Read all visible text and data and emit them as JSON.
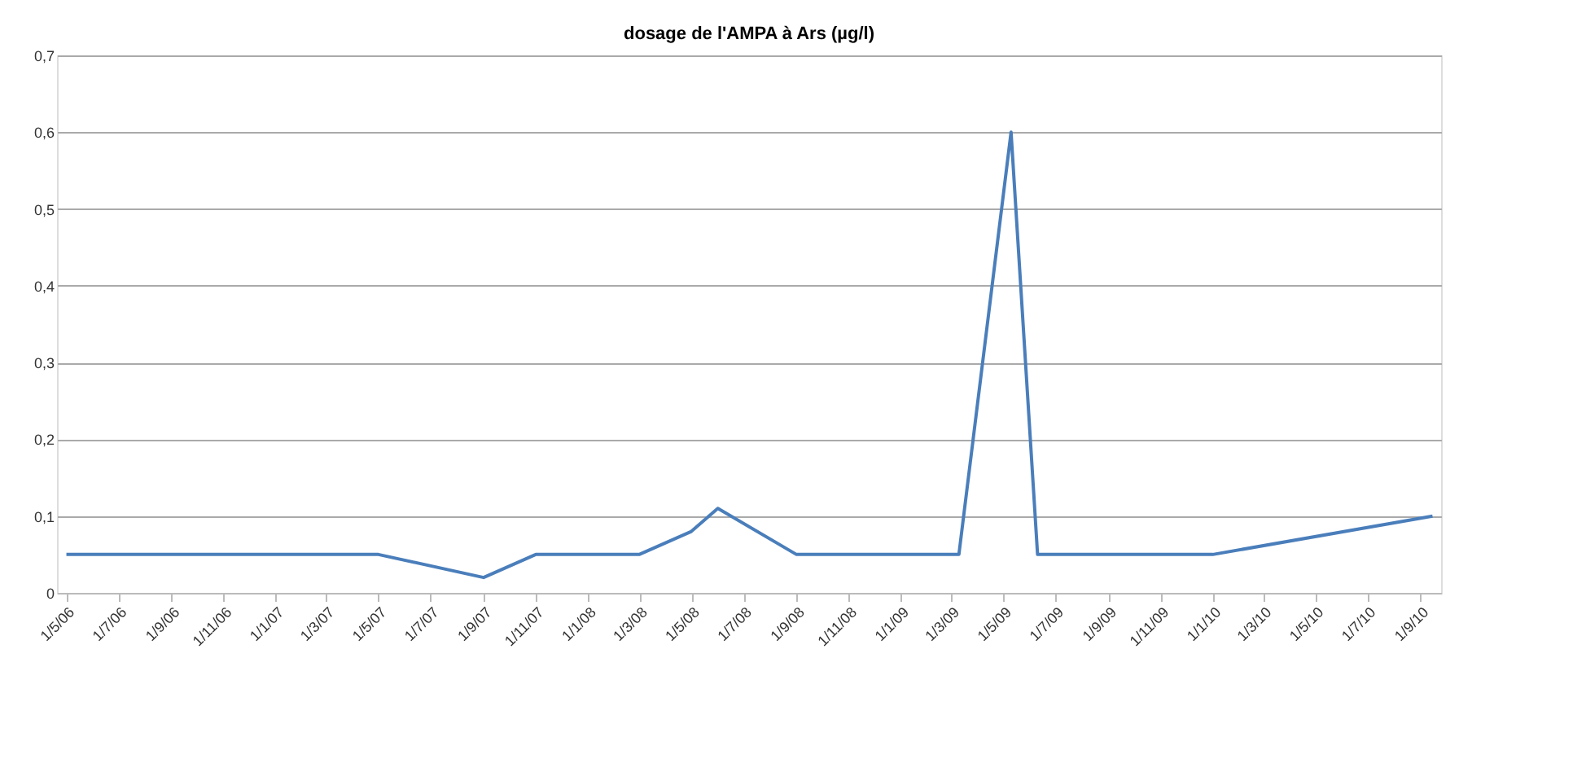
{
  "chart_data": {
    "type": "line",
    "title": "dosage de l'AMPA à Ars (µg/l)",
    "x": [
      "2006-05-01",
      "2007-05-01",
      "2007-09-01",
      "2007-11-01",
      "2008-03-01",
      "2008-05-01",
      "2008-06-01",
      "2008-09-01",
      "2009-03-10",
      "2009-05-10",
      "2009-06-10",
      "2010-01-01",
      "2010-09-15"
    ],
    "series": [
      {
        "color": "#4a7ebb",
        "values": [
          0.05,
          0.05,
          0.02,
          0.05,
          0.05,
          0.08,
          0.11,
          0.05,
          0.05,
          0.6,
          0.05,
          0.05,
          0.1
        ]
      }
    ],
    "xlim": [
      "2006-04-20",
      "2010-09-25"
    ],
    "xticks": [
      {
        "value": "2006-05-01",
        "label": "1/5/06"
      },
      {
        "value": "2006-07-01",
        "label": "1/7/06"
      },
      {
        "value": "2006-09-01",
        "label": "1/9/06"
      },
      {
        "value": "2006-11-01",
        "label": "1/11/06"
      },
      {
        "value": "2007-01-01",
        "label": "1/1/07"
      },
      {
        "value": "2007-03-01",
        "label": "1/3/07"
      },
      {
        "value": "2007-05-01",
        "label": "1/5/07"
      },
      {
        "value": "2007-07-01",
        "label": "1/7/07"
      },
      {
        "value": "2007-09-01",
        "label": "1/9/07"
      },
      {
        "value": "2007-11-01",
        "label": "1/11/07"
      },
      {
        "value": "2008-01-01",
        "label": "1/1/08"
      },
      {
        "value": "2008-03-01",
        "label": "1/3/08"
      },
      {
        "value": "2008-05-01",
        "label": "1/5/08"
      },
      {
        "value": "2008-07-01",
        "label": "1/7/08"
      },
      {
        "value": "2008-09-01",
        "label": "1/9/08"
      },
      {
        "value": "2008-11-01",
        "label": "1/11/08"
      },
      {
        "value": "2009-01-01",
        "label": "1/1/09"
      },
      {
        "value": "2009-03-01",
        "label": "1/3/09"
      },
      {
        "value": "2009-05-01",
        "label": "1/5/09"
      },
      {
        "value": "2009-07-01",
        "label": "1/7/09"
      },
      {
        "value": "2009-09-01",
        "label": "1/9/09"
      },
      {
        "value": "2009-11-01",
        "label": "1/11/09"
      },
      {
        "value": "2010-01-01",
        "label": "1/1/10"
      },
      {
        "value": "2010-03-01",
        "label": "1/3/10"
      },
      {
        "value": "2010-05-01",
        "label": "1/5/10"
      },
      {
        "value": "2010-07-01",
        "label": "1/7/10"
      },
      {
        "value": "2010-09-01",
        "label": "1/9/10"
      }
    ],
    "ylim": [
      0,
      0.7
    ],
    "yticks": [
      0,
      {
        "value": 0.1,
        "label": "0,1"
      },
      {
        "value": 0.2,
        "label": "0,2"
      },
      {
        "value": 0.3,
        "label": "0,3"
      },
      {
        "value": 0.4,
        "label": "0,4"
      },
      {
        "value": 0.5,
        "label": "0,5"
      },
      {
        "value": 0.6,
        "label": "0,6"
      },
      {
        "value": 0.7,
        "label": "0,7"
      }
    ],
    "grid": "y",
    "marker": "none",
    "line_style": "solid"
  }
}
